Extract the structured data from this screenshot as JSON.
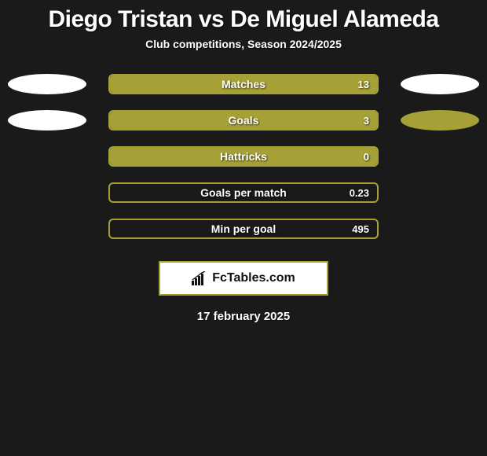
{
  "header": {
    "player1": "Diego Tristan",
    "vs": "vs",
    "player2": "De Miguel Alameda",
    "subtitle": "Club competitions, Season 2024/2025"
  },
  "colors": {
    "olive": "#a6a137",
    "white": "#ffffff",
    "bg": "#1a1a1a"
  },
  "bars": [
    {
      "label": "Matches",
      "value_text": "13",
      "fill_pct": 100,
      "fill_color": "#a6a137",
      "border_color": "#a6a137",
      "left_ellipse": "white",
      "right_ellipse": "white"
    },
    {
      "label": "Goals",
      "value_text": "3",
      "fill_pct": 100,
      "fill_color": "#a6a137",
      "border_color": "#a6a137",
      "left_ellipse": "white",
      "right_ellipse": "olive"
    },
    {
      "label": "Hattricks",
      "value_text": "0",
      "fill_pct": 100,
      "fill_color": "#a6a137",
      "border_color": "#a6a137",
      "left_ellipse": "none",
      "right_ellipse": "none"
    },
    {
      "label": "Goals per match",
      "value_text": "0.23",
      "fill_pct": 0,
      "fill_color": "#a6a137",
      "border_color": "#a6a137",
      "left_ellipse": "none",
      "right_ellipse": "none"
    },
    {
      "label": "Min per goal",
      "value_text": "495",
      "fill_pct": 0,
      "fill_color": "#a6a137",
      "border_color": "#a6a137",
      "left_ellipse": "none",
      "right_ellipse": "none"
    }
  ],
  "brand": {
    "text": "FcTables.com"
  },
  "date": "17 february 2025"
}
